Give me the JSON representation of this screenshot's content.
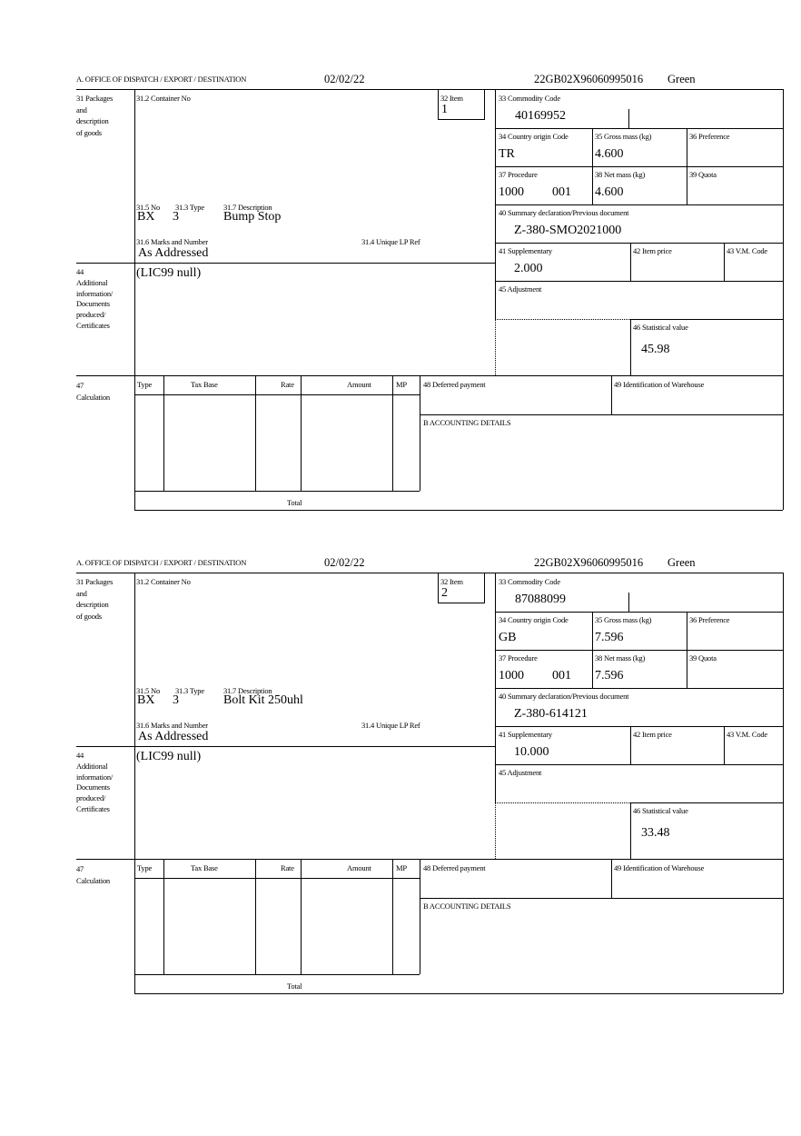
{
  "labels": {
    "office": "A. OFFICE OF DISPATCH / EXPORT / DESTINATION",
    "packages": [
      "31 Packages",
      "and",
      "description",
      "of goods"
    ],
    "container_no": "31.2 Container No",
    "item": "32 Item",
    "no": "31.5 No",
    "type": "31.3 Type",
    "description": "31.7 Description",
    "marks": "31.6 Marks and Number",
    "unique_lp_ref": "31.4 Unique LP Ref",
    "additional": [
      "44",
      "Additional",
      "information/",
      "Documents",
      "produced/",
      "Certificates"
    ],
    "commodity_code": "33 Commodity Code",
    "country_origin": "34 Country origin Code",
    "gross_mass": "35 Gross mass (kg)",
    "preference": "36 Preference",
    "procedure": "37 Procedure",
    "net_mass": "38 Net mass (kg)",
    "quota": "39 Quota",
    "summary_declaration": "40 Summary declaration/Previous document",
    "supplementary": "41 Supplementary",
    "item_price": "42 Item price",
    "vm_code": "43 V.M. Code",
    "adjustment": "45 Adjustment",
    "statistical_value": "46 Statistical value",
    "calculation": [
      "47",
      "Calculation"
    ],
    "calc_columns": [
      "Type",
      "Tax Base",
      "Rate",
      "Amount",
      "MP"
    ],
    "total": "Total",
    "deferred_payment": "48 Deferred payment",
    "warehouse": "49 Identification of Warehouse",
    "accounting": "B ACCOUNTING DETAILS"
  },
  "forms": [
    {
      "date": "02/02/22",
      "reference": "22GB02X96060995016",
      "route": "Green",
      "item": "1",
      "no": "BX",
      "type": "3",
      "description": "Bump Stop",
      "marks": "As Addressed",
      "additional_info": "(LIC99 null)",
      "commodity_code": "40169952",
      "country_origin": "TR",
      "gross_mass": "4.600",
      "procedure": "1000",
      "procedure_additional": "001",
      "net_mass": "4.600",
      "previous_document": "Z-380-SMO2021000",
      "supplementary": "2.000",
      "statistical_value": "45.98"
    },
    {
      "date": "02/02/22",
      "reference": "22GB02X96060995016",
      "route": "Green",
      "item": "2",
      "no": "BX",
      "type": "3",
      "description": "Bolt Kit 250uhl",
      "marks": "As Addressed",
      "additional_info": "(LIC99 null)",
      "commodity_code": "87088099",
      "country_origin": "GB",
      "gross_mass": "7.596",
      "procedure": "1000",
      "procedure_additional": "001",
      "net_mass": "7.596",
      "previous_document": "Z-380-614121",
      "supplementary": "10.000",
      "statistical_value": "33.48"
    }
  ]
}
